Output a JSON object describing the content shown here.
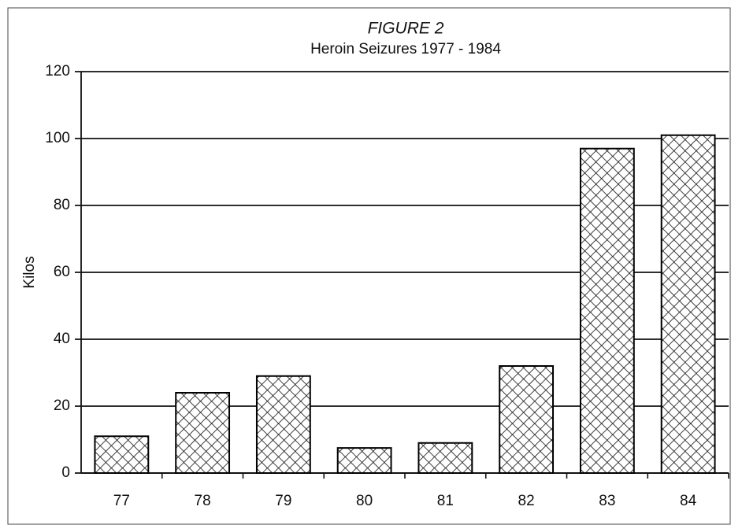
{
  "chart_data": {
    "type": "bar",
    "title": "FIGURE 2",
    "subtitle": "Heroin Seizures 1977 - 1984",
    "y_label": "Kilos",
    "categories": [
      "77",
      "78",
      "79",
      "80",
      "81",
      "82",
      "83",
      "84"
    ],
    "values": [
      11,
      24,
      29,
      7.5,
      9,
      32,
      97,
      101
    ],
    "color": "#000000",
    "pattern": "crosshatch",
    "ylim": [
      0,
      120
    ],
    "yticks": [
      0,
      20,
      40,
      60,
      80,
      100,
      120
    ],
    "grid": true
  }
}
